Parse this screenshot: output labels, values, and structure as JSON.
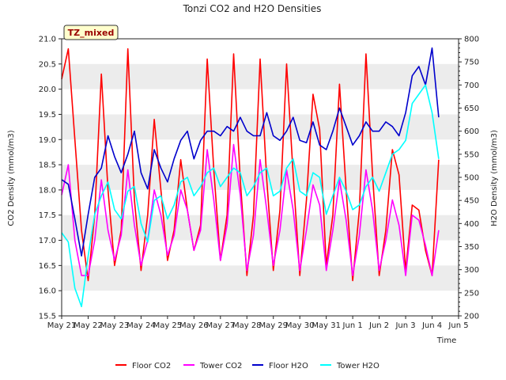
{
  "chart_data": {
    "type": "line",
    "title": "Tonzi CO2 and H2O Densities",
    "xlabel": "Time",
    "ylabel_left": "CO2 Density (mmol/m3)",
    "ylabel_right": "H2O Density (mmol/m3)",
    "badge": "TZ_mixed",
    "xlim": [
      0,
      15
    ],
    "x_tick_positions": [
      0,
      1,
      2,
      3,
      4,
      5,
      6,
      7,
      8,
      9,
      10,
      11,
      12,
      13,
      14,
      15
    ],
    "x_tick_labels": [
      "May 21",
      "May 22",
      "May 23",
      "May 24",
      "May 25",
      "May 26",
      "May 27",
      "May 28",
      "May 29",
      "May 30",
      "May 31",
      "Jun 1",
      "Jun 2",
      "Jun 3",
      "Jun 4",
      "Jun 5"
    ],
    "ylim_left": [
      15.5,
      21.0
    ],
    "y_ticks_left": [
      "15.5",
      "16.0",
      "16.5",
      "17.0",
      "17.5",
      "18.0",
      "18.5",
      "19.0",
      "19.5",
      "20.0",
      "20.5",
      "21.0"
    ],
    "ylim_right": [
      200,
      800
    ],
    "y_ticks_right": [
      "200",
      "250",
      "300",
      "350",
      "400",
      "450",
      "500",
      "550",
      "600",
      "650",
      "700",
      "750",
      "800"
    ],
    "grid_bands": true,
    "legend_position": "bottom",
    "series": [
      {
        "name": "Floor CO2",
        "axis": "left",
        "color": "#ff0000",
        "x": [
          0.0,
          0.25,
          0.5,
          0.75,
          1.0,
          1.25,
          1.5,
          1.75,
          2.0,
          2.25,
          2.5,
          2.75,
          3.0,
          3.25,
          3.5,
          3.75,
          4.0,
          4.25,
          4.5,
          4.75,
          5.0,
          5.25,
          5.5,
          5.75,
          6.0,
          6.25,
          6.5,
          6.75,
          7.0,
          7.25,
          7.5,
          7.75,
          8.0,
          8.25,
          8.5,
          8.75,
          9.0,
          9.25,
          9.5,
          9.75,
          10.0,
          10.25,
          10.5,
          10.75,
          11.0,
          11.25,
          11.5,
          11.75,
          12.0,
          12.25,
          12.5,
          12.75,
          13.0,
          13.25,
          13.5,
          13.75,
          14.0,
          14.25
        ],
        "y": [
          20.2,
          20.8,
          19.0,
          17.2,
          16.2,
          17.5,
          20.3,
          18.0,
          16.5,
          17.2,
          20.8,
          17.8,
          16.4,
          17.5,
          19.4,
          18.0,
          16.6,
          17.2,
          18.6,
          17.6,
          16.8,
          17.3,
          20.6,
          18.4,
          16.6,
          17.5,
          20.7,
          18.2,
          16.3,
          17.5,
          20.6,
          18.2,
          16.4,
          17.6,
          20.5,
          18.3,
          16.3,
          17.8,
          19.9,
          19.2,
          16.5,
          17.5,
          20.1,
          18.0,
          16.2,
          17.6,
          20.7,
          18.3,
          16.3,
          17.2,
          18.8,
          18.3,
          16.4,
          17.7,
          17.6,
          16.8,
          16.3,
          18.6
        ]
      },
      {
        "name": "Tower CO2",
        "axis": "left",
        "color": "#ff00ff",
        "x": [
          0.0,
          0.25,
          0.5,
          0.75,
          1.0,
          1.25,
          1.5,
          1.75,
          2.0,
          2.25,
          2.5,
          2.75,
          3.0,
          3.25,
          3.5,
          3.75,
          4.0,
          4.25,
          4.5,
          4.75,
          5.0,
          5.25,
          5.5,
          5.75,
          6.0,
          6.25,
          6.5,
          6.75,
          7.0,
          7.25,
          7.5,
          7.75,
          8.0,
          8.25,
          8.5,
          8.75,
          9.0,
          9.25,
          9.5,
          9.75,
          10.0,
          10.25,
          10.5,
          10.75,
          11.0,
          11.25,
          11.5,
          11.75,
          12.0,
          12.25,
          12.5,
          12.75,
          13.0,
          13.25,
          13.5,
          13.75,
          14.0,
          14.25
        ],
        "y": [
          17.9,
          18.5,
          17.0,
          16.3,
          16.3,
          17.0,
          18.2,
          17.2,
          16.6,
          17.1,
          18.4,
          17.3,
          16.5,
          17.0,
          18.0,
          17.5,
          16.7,
          17.1,
          18.0,
          17.6,
          16.8,
          17.2,
          18.8,
          17.8,
          16.6,
          17.3,
          18.9,
          17.9,
          16.4,
          17.1,
          18.6,
          17.6,
          16.5,
          17.2,
          18.4,
          17.6,
          16.4,
          17.2,
          18.1,
          17.7,
          16.4,
          17.2,
          18.2,
          17.4,
          16.3,
          17.1,
          18.4,
          17.6,
          16.4,
          17.0,
          17.8,
          17.3,
          16.3,
          17.5,
          17.4,
          16.9,
          16.3,
          17.2
        ]
      },
      {
        "name": "Floor H2O",
        "axis": "right",
        "color": "#0000cc",
        "x": [
          0.0,
          0.25,
          0.5,
          0.75,
          1.0,
          1.25,
          1.5,
          1.75,
          2.0,
          2.25,
          2.5,
          2.75,
          3.0,
          3.25,
          3.5,
          3.75,
          4.0,
          4.25,
          4.5,
          4.75,
          5.0,
          5.25,
          5.5,
          5.75,
          6.0,
          6.25,
          6.5,
          6.75,
          7.0,
          7.25,
          7.5,
          7.75,
          8.0,
          8.25,
          8.5,
          8.75,
          9.0,
          9.25,
          9.5,
          9.75,
          10.0,
          10.25,
          10.5,
          10.75,
          11.0,
          11.25,
          11.5,
          11.75,
          12.0,
          12.25,
          12.5,
          12.75,
          13.0,
          13.25,
          13.5,
          13.75,
          14.0,
          14.25
        ],
        "y": [
          495,
          485,
          410,
          330,
          420,
          500,
          520,
          590,
          545,
          510,
          550,
          600,
          510,
          475,
          560,
          520,
          490,
          540,
          580,
          600,
          540,
          580,
          600,
          600,
          590,
          610,
          600,
          630,
          600,
          590,
          590,
          640,
          590,
          580,
          600,
          630,
          580,
          575,
          620,
          570,
          560,
          600,
          650,
          610,
          570,
          590,
          620,
          600,
          600,
          620,
          610,
          590,
          640,
          720,
          740,
          700,
          780,
          630
        ]
      },
      {
        "name": "Tower H2O",
        "axis": "right",
        "color": "#00ffff",
        "x": [
          0.0,
          0.25,
          0.5,
          0.75,
          1.0,
          1.25,
          1.5,
          1.75,
          2.0,
          2.25,
          2.5,
          2.75,
          3.0,
          3.25,
          3.5,
          3.75,
          4.0,
          4.25,
          4.5,
          4.75,
          5.0,
          5.25,
          5.5,
          5.75,
          6.0,
          6.25,
          6.5,
          6.75,
          7.0,
          7.25,
          7.5,
          7.75,
          8.0,
          8.25,
          8.5,
          8.75,
          9.0,
          9.25,
          9.5,
          9.75,
          10.0,
          10.25,
          10.5,
          10.75,
          11.0,
          11.25,
          11.5,
          11.75,
          12.0,
          12.25,
          12.5,
          12.75,
          13.0,
          13.25,
          13.5,
          13.75,
          14.0,
          14.25
        ],
        "y": [
          380,
          360,
          260,
          220,
          330,
          420,
          460,
          490,
          430,
          410,
          470,
          480,
          400,
          360,
          450,
          460,
          410,
          440,
          490,
          500,
          460,
          480,
          510,
          520,
          480,
          500,
          520,
          510,
          460,
          480,
          510,
          520,
          460,
          470,
          520,
          540,
          470,
          460,
          510,
          500,
          420,
          460,
          500,
          470,
          430,
          440,
          480,
          500,
          470,
          510,
          550,
          560,
          580,
          660,
          680,
          700,
          640,
          540
        ]
      }
    ]
  }
}
